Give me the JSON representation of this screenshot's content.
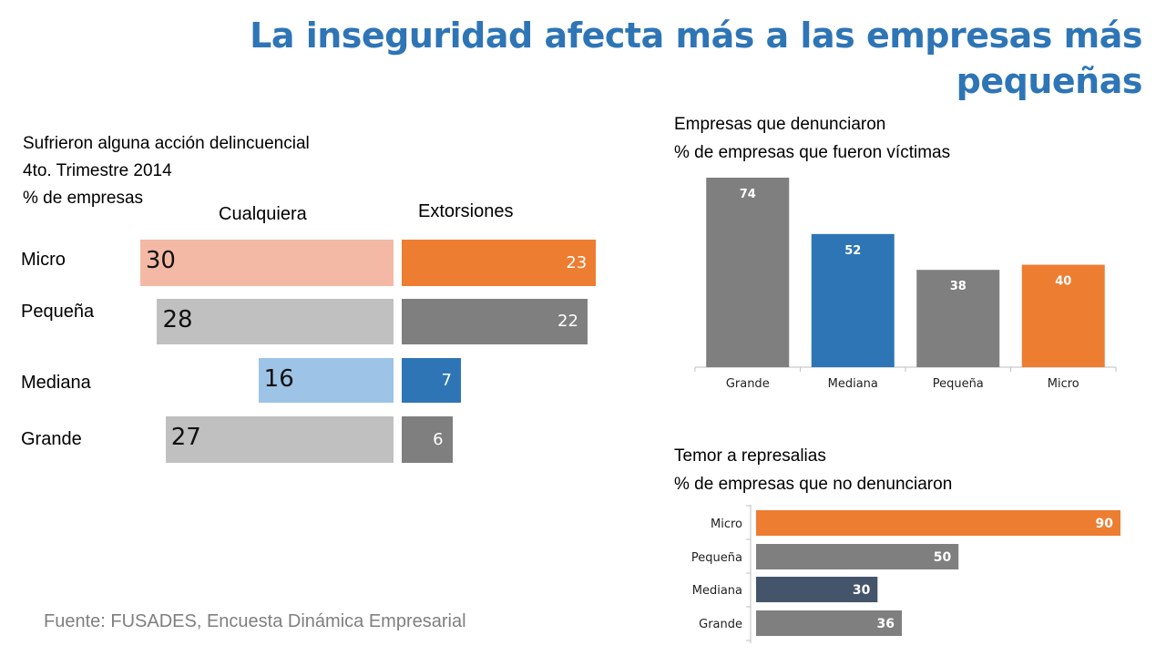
{
  "title": "La inseguridad afecta más a las empresas más pequeñas",
  "source": "Fuente: FUSADES, Encuesta Dinámica Empresarial",
  "colors": {
    "title": "#2e75b6",
    "orange": "#ed7d31",
    "orange_light": "#f4b9a4",
    "gray_dark": "#7f7f7f",
    "gray_light": "#c0c0c0",
    "blue": "#2e75b6",
    "blue_light": "#9dc3e6",
    "navy": "#44546a"
  },
  "chart_data": [
    {
      "type": "bar",
      "orientation": "horizontal",
      "title": "Sufrieron alguna acción delincuencial",
      "subtitle_lines": [
        "4to. Trimestre 2014",
        "% de empresas"
      ],
      "categories": [
        "Micro",
        "Pequeña",
        "Mediana",
        "Grande"
      ],
      "series": [
        {
          "name": "Cualquiera",
          "values": [
            30,
            28,
            16,
            27
          ]
        },
        {
          "name": "Extorsiones",
          "values": [
            23,
            22,
            7,
            6
          ]
        }
      ],
      "xlim": [
        0,
        30
      ]
    },
    {
      "type": "bar",
      "orientation": "vertical",
      "title": "Empresas que denunciaron",
      "subtitle": "% de empresas que fueron víctimas",
      "categories": [
        "Grande",
        "Mediana",
        "Pequeña",
        "Micro"
      ],
      "values": [
        74,
        52,
        38,
        40
      ],
      "ylim": [
        0,
        74
      ]
    },
    {
      "type": "bar",
      "orientation": "horizontal",
      "title": "Temor a represalias",
      "subtitle": "% de empresas que no denunciaron",
      "categories": [
        "Micro",
        "Pequeña",
        "Mediana",
        "Grande"
      ],
      "values": [
        90,
        50,
        30,
        36
      ],
      "xlim": [
        0,
        90
      ]
    }
  ]
}
